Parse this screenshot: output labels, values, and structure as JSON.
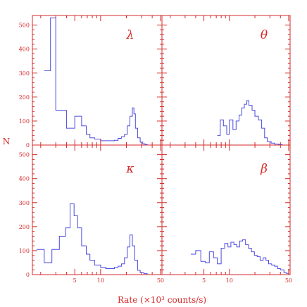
{
  "chart_data": {
    "type": "histogram-grid",
    "xlabel": "Rate (×10³ counts/s)",
    "ylabel": "N",
    "xscale": "log",
    "xlim": [
      1.6,
      52
    ],
    "ylim": [
      0,
      540
    ],
    "x_tick_labels": [
      "5",
      "10",
      "50"
    ],
    "x_tick_values": [
      5,
      10,
      50
    ],
    "y_tick_labels": [
      "0",
      "100",
      "200",
      "300",
      "400",
      "500"
    ],
    "y_tick_values": [
      0,
      100,
      200,
      300,
      400,
      500
    ],
    "colors": {
      "axes": "#d62828",
      "histogram": "#4a4ae0"
    },
    "panels": [
      {
        "id": "lambda",
        "label": "λ",
        "bins": [
          [
            2.2,
            310
          ],
          [
            2.6,
            530
          ],
          [
            3.0,
            145
          ],
          [
            3.6,
            145
          ],
          [
            4.0,
            70
          ],
          [
            4.5,
            70
          ],
          [
            5.0,
            120
          ],
          [
            5.5,
            120
          ],
          [
            6.0,
            80
          ],
          [
            6.8,
            45
          ],
          [
            7.5,
            30
          ],
          [
            8.5,
            25
          ],
          [
            10,
            18
          ],
          [
            11.5,
            18
          ],
          [
            13,
            18
          ],
          [
            14.5,
            20
          ],
          [
            16,
            28
          ],
          [
            17.5,
            35
          ],
          [
            19,
            45
          ],
          [
            20.5,
            80
          ],
          [
            22,
            120
          ],
          [
            23.5,
            155
          ],
          [
            24.5,
            130
          ],
          [
            25.5,
            70
          ],
          [
            27,
            30
          ],
          [
            29,
            12
          ],
          [
            31,
            5
          ],
          [
            33,
            2
          ],
          [
            35,
            0
          ]
        ]
      },
      {
        "id": "theta",
        "label": "θ",
        "bins": [
          [
            7.2,
            40
          ],
          [
            7.8,
            105
          ],
          [
            8.5,
            80
          ],
          [
            9.3,
            45
          ],
          [
            10,
            105
          ],
          [
            11,
            65
          ],
          [
            12,
            100
          ],
          [
            13,
            125
          ],
          [
            14,
            155
          ],
          [
            15,
            170
          ],
          [
            16,
            185
          ],
          [
            17,
            165
          ],
          [
            18.5,
            145
          ],
          [
            20,
            120
          ],
          [
            22,
            105
          ],
          [
            24,
            70
          ],
          [
            26,
            30
          ],
          [
            28,
            15
          ],
          [
            31,
            8
          ],
          [
            34,
            4
          ],
          [
            38,
            2
          ],
          [
            42,
            0
          ]
        ]
      },
      {
        "id": "kappa",
        "label": "κ",
        "bins": [
          [
            1.8,
            105
          ],
          [
            2.2,
            50
          ],
          [
            2.7,
            105
          ],
          [
            3.3,
            160
          ],
          [
            3.9,
            195
          ],
          [
            4.4,
            295
          ],
          [
            4.9,
            245
          ],
          [
            5.4,
            195
          ],
          [
            6.0,
            120
          ],
          [
            6.8,
            85
          ],
          [
            7.5,
            60
          ],
          [
            8.5,
            40
          ],
          [
            10,
            30
          ],
          [
            11.5,
            25
          ],
          [
            13,
            25
          ],
          [
            14.5,
            30
          ],
          [
            16,
            35
          ],
          [
            17.5,
            45
          ],
          [
            19,
            70
          ],
          [
            20.5,
            115
          ],
          [
            22,
            165
          ],
          [
            23.5,
            120
          ],
          [
            25,
            60
          ],
          [
            27,
            18
          ],
          [
            29,
            8
          ],
          [
            32,
            4
          ],
          [
            35,
            0
          ]
        ]
      },
      {
        "id": "beta",
        "label": "β",
        "bins": [
          [
            3.5,
            85
          ],
          [
            4.0,
            100
          ],
          [
            4.6,
            55
          ],
          [
            5.2,
            50
          ],
          [
            5.8,
            95
          ],
          [
            6.5,
            70
          ],
          [
            7.2,
            45
          ],
          [
            8.0,
            110
          ],
          [
            8.8,
            130
          ],
          [
            9.6,
            115
          ],
          [
            10.4,
            135
          ],
          [
            11.3,
            125
          ],
          [
            12.2,
            115
          ],
          [
            13.2,
            140
          ],
          [
            14.3,
            145
          ],
          [
            15.5,
            125
          ],
          [
            16.8,
            110
          ],
          [
            18.2,
            95
          ],
          [
            19.7,
            80
          ],
          [
            21.3,
            75
          ],
          [
            23,
            60
          ],
          [
            25,
            70
          ],
          [
            27,
            60
          ],
          [
            29,
            45
          ],
          [
            31.5,
            40
          ],
          [
            34,
            35
          ],
          [
            37,
            25
          ],
          [
            40,
            20
          ],
          [
            44,
            8
          ],
          [
            47,
            5
          ],
          [
            50,
            0
          ]
        ]
      }
    ]
  }
}
